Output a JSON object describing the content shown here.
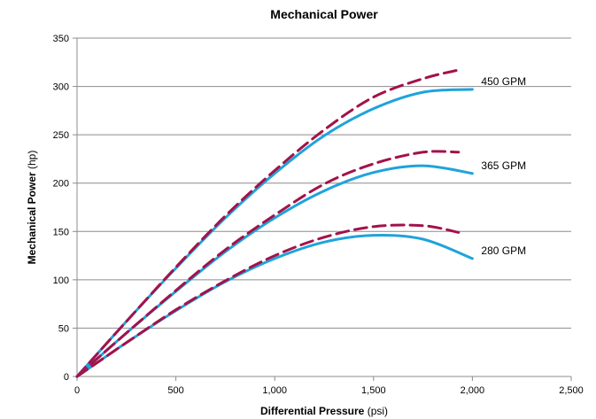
{
  "chart_data": {
    "type": "line",
    "title": "Mechanical Power",
    "xlabel": {
      "bold": "Differential Pressure",
      "unit": " (psi)"
    },
    "ylabel": {
      "bold": "Mechanical Power",
      "unit": " (hp)"
    },
    "xlim": [
      0,
      2500
    ],
    "ylim": [
      0,
      350
    ],
    "xticks": [
      0,
      500,
      1000,
      1500,
      2000,
      2500
    ],
    "xtick_labels": [
      "0",
      "500",
      "1,000",
      "1,500",
      "2,000",
      "2,500"
    ],
    "yticks": [
      0,
      50,
      100,
      150,
      200,
      250,
      300,
      350
    ],
    "ytick_labels": [
      "0",
      "50",
      "100",
      "150",
      "200",
      "250",
      "300",
      "350"
    ],
    "grid": "horizontal",
    "colors": {
      "solid": "#1fa3dc",
      "dashed": "#a3124a"
    },
    "series": [
      {
        "label": "450 GPM",
        "style": "solid",
        "x": [
          0,
          250,
          500,
          750,
          1000,
          1250,
          1500,
          1750,
          2000
        ],
        "y": [
          0,
          57,
          112,
          164,
          210,
          249,
          277,
          294,
          297
        ]
      },
      {
        "style": "dashed",
        "x": [
          0,
          250,
          500,
          750,
          1000,
          1250,
          1500,
          1750,
          1930
        ],
        "y": [
          0,
          57,
          113,
          166,
          213,
          255,
          289,
          308,
          317
        ]
      },
      {
        "label": "365 GPM",
        "style": "solid",
        "x": [
          0,
          250,
          500,
          750,
          1000,
          1250,
          1500,
          1750,
          2000
        ],
        "y": [
          0,
          45,
          88,
          129,
          164,
          192,
          211,
          218,
          210
        ]
      },
      {
        "style": "dashed",
        "x": [
          0,
          250,
          500,
          750,
          1000,
          1250,
          1500,
          1750,
          1930
        ],
        "y": [
          0,
          45,
          89,
          131,
          167,
          199,
          220,
          232,
          232
        ]
      },
      {
        "label": "280 GPM",
        "style": "solid",
        "x": [
          0,
          250,
          500,
          750,
          1000,
          1250,
          1500,
          1750,
          2000
        ],
        "y": [
          0,
          35,
          68,
          98,
          122,
          139,
          146,
          142,
          122
        ]
      },
      {
        "style": "dashed",
        "x": [
          0,
          250,
          500,
          750,
          1000,
          1250,
          1500,
          1750,
          1930
        ],
        "y": [
          0,
          35,
          69,
          99,
          125,
          144,
          155,
          156,
          149
        ]
      }
    ]
  }
}
